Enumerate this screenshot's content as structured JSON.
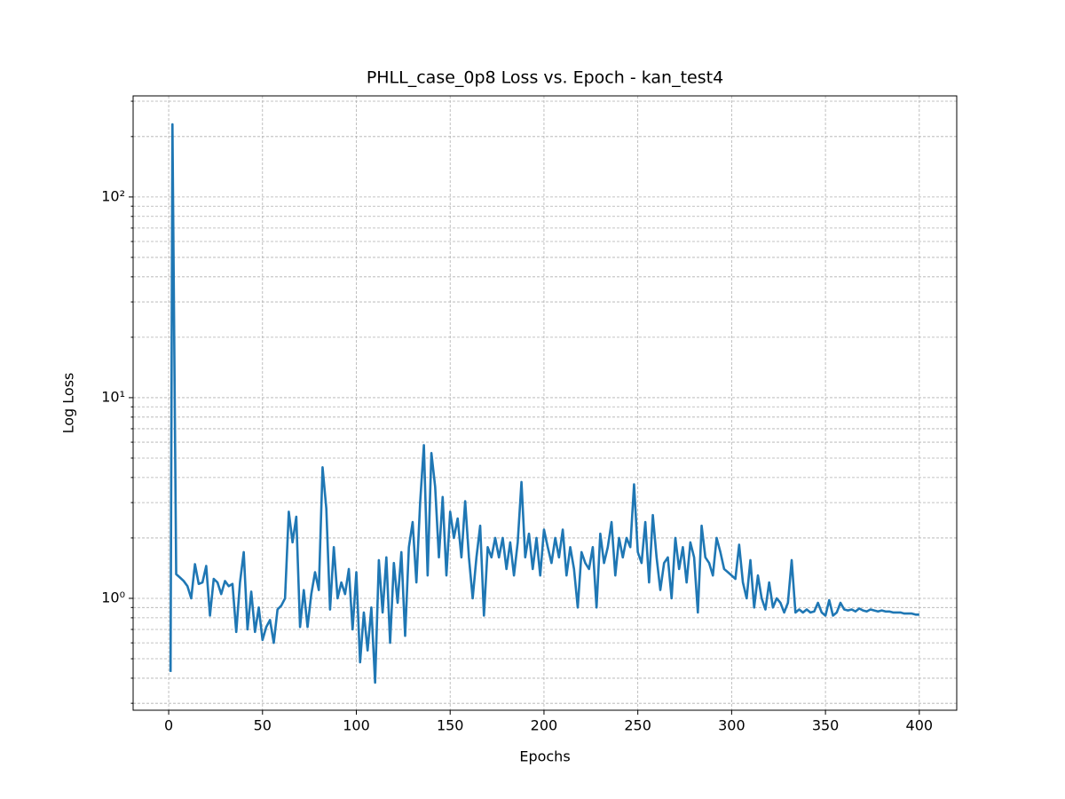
{
  "chart_data": {
    "type": "line",
    "title": "PHLL_case_0p8 Loss vs. Epoch - kan_test4",
    "x_label": "Epochs",
    "y_label": "Log Loss",
    "y_scale": "log",
    "grid": true,
    "xlim": [
      -18.95,
      419.95
    ],
    "xticks": [
      0,
      50,
      100,
      150,
      200,
      250,
      300,
      350,
      400
    ],
    "ylim": [
      0.277,
      319
    ],
    "yticks": [
      {
        "value": 1,
        "label": "10⁰"
      },
      {
        "value": 10,
        "label": "10¹"
      },
      {
        "value": 100,
        "label": "10²"
      }
    ],
    "yminorticks": [
      0.3,
      0.4,
      0.5,
      0.6,
      0.7,
      0.8,
      0.9,
      2,
      3,
      4,
      5,
      6,
      7,
      8,
      9,
      20,
      30,
      40,
      50,
      60,
      70,
      80,
      90,
      200,
      300
    ],
    "x": [
      1,
      2,
      4,
      6,
      8,
      10,
      12,
      14,
      16,
      18,
      20,
      22,
      24,
      26,
      28,
      30,
      32,
      34,
      36,
      38,
      40,
      42,
      44,
      46,
      48,
      50,
      52,
      54,
      56,
      58,
      60,
      62,
      64,
      66,
      68,
      70,
      72,
      74,
      76,
      78,
      80,
      82,
      84,
      86,
      88,
      90,
      92,
      94,
      96,
      98,
      100,
      102,
      104,
      106,
      108,
      110,
      112,
      114,
      116,
      118,
      120,
      122,
      124,
      126,
      128,
      130,
      132,
      134,
      136,
      138,
      140,
      142,
      144,
      146,
      148,
      150,
      152,
      154,
      156,
      158,
      160,
      162,
      164,
      166,
      168,
      170,
      172,
      174,
      176,
      178,
      180,
      182,
      184,
      186,
      188,
      190,
      192,
      194,
      196,
      198,
      200,
      202,
      204,
      206,
      208,
      210,
      212,
      214,
      216,
      218,
      220,
      222,
      224,
      226,
      228,
      230,
      232,
      234,
      236,
      238,
      240,
      242,
      244,
      246,
      248,
      250,
      252,
      254,
      256,
      258,
      260,
      262,
      264,
      266,
      268,
      270,
      272,
      274,
      276,
      278,
      280,
      282,
      284,
      286,
      288,
      290,
      292,
      294,
      296,
      298,
      300,
      302,
      304,
      306,
      308,
      310,
      312,
      314,
      316,
      318,
      320,
      322,
      324,
      326,
      328,
      330,
      332,
      334,
      336,
      338,
      340,
      342,
      344,
      346,
      348,
      350,
      352,
      354,
      356,
      358,
      360,
      362,
      364,
      366,
      368,
      370,
      372,
      374,
      376,
      378,
      380,
      382,
      384,
      386,
      388,
      390,
      392,
      394,
      396,
      398,
      400
    ],
    "series": [
      {
        "color": "#1f77b4",
        "values": [
          0.43,
          230,
          1.32,
          1.27,
          1.22,
          1.15,
          1.0,
          1.48,
          1.18,
          1.2,
          1.45,
          0.82,
          1.25,
          1.2,
          1.05,
          1.22,
          1.15,
          1.18,
          0.68,
          1.2,
          1.7,
          0.7,
          1.08,
          0.68,
          0.9,
          0.62,
          0.72,
          0.78,
          0.6,
          0.88,
          0.92,
          1.0,
          2.7,
          1.9,
          2.55,
          0.72,
          1.1,
          0.72,
          1.05,
          1.35,
          1.1,
          4.5,
          2.8,
          0.88,
          1.8,
          1.0,
          1.2,
          1.05,
          1.4,
          0.7,
          1.35,
          0.48,
          0.85,
          0.55,
          0.9,
          0.38,
          1.55,
          0.85,
          1.6,
          0.6,
          1.5,
          0.95,
          1.7,
          0.65,
          1.8,
          2.4,
          1.2,
          3.0,
          5.8,
          1.3,
          5.3,
          3.6,
          1.6,
          3.2,
          1.3,
          2.7,
          2.0,
          2.5,
          1.6,
          3.05,
          1.6,
          1.0,
          1.6,
          2.3,
          0.82,
          1.8,
          1.6,
          2.0,
          1.6,
          2.0,
          1.4,
          1.9,
          1.3,
          1.9,
          3.8,
          1.6,
          2.1,
          1.4,
          2.0,
          1.3,
          2.2,
          1.8,
          1.5,
          2.0,
          1.6,
          2.2,
          1.3,
          1.8,
          1.4,
          0.9,
          1.7,
          1.5,
          1.4,
          1.8,
          0.9,
          2.1,
          1.5,
          1.8,
          2.4,
          1.3,
          2.0,
          1.6,
          2.0,
          1.8,
          3.7,
          1.7,
          1.5,
          2.4,
          1.2,
          2.6,
          1.6,
          1.1,
          1.5,
          1.6,
          1.0,
          2.0,
          1.4,
          1.8,
          1.2,
          1.9,
          1.6,
          0.85,
          2.3,
          1.6,
          1.5,
          1.3,
          2.0,
          1.7,
          1.4,
          1.35,
          1.3,
          1.25,
          1.85,
          1.2,
          1.0,
          1.55,
          0.9,
          1.3,
          1.0,
          0.88,
          1.2,
          0.9,
          1.0,
          0.95,
          0.85,
          0.95,
          1.55,
          0.85,
          0.88,
          0.85,
          0.88,
          0.85,
          0.86,
          0.95,
          0.85,
          0.82,
          0.98,
          0.82,
          0.85,
          0.95,
          0.88,
          0.87,
          0.88,
          0.86,
          0.89,
          0.87,
          0.86,
          0.88,
          0.87,
          0.86,
          0.87,
          0.86,
          0.86,
          0.85,
          0.85,
          0.85,
          0.84,
          0.84,
          0.84,
          0.83,
          0.83
        ]
      }
    ]
  }
}
